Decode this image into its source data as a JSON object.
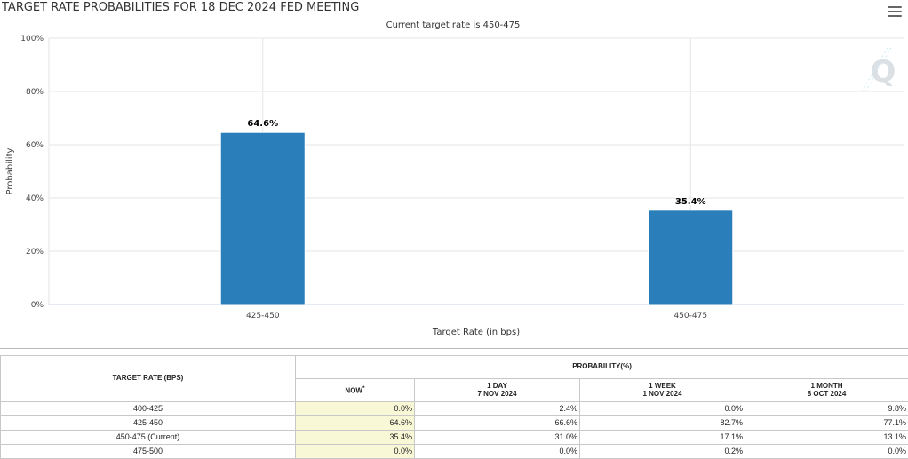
{
  "header": {
    "title": "TARGET RATE PROBABILITIES FOR 18 DEC 2024 FED MEETING",
    "menu_icon": "hamburger-menu-icon"
  },
  "chart_data": {
    "type": "bar",
    "title": "TARGET RATE PROBABILITIES FOR 18 DEC 2024 FED MEETING",
    "subtitle": "Current target rate is 450-475",
    "xlabel": "Target Rate (in bps)",
    "ylabel": "Probability",
    "categories": [
      "425-450",
      "450-475"
    ],
    "values": [
      64.6,
      35.4
    ],
    "data_labels": [
      "64.6%",
      "35.4%"
    ],
    "ylim": [
      0,
      100
    ],
    "yticks": [
      0,
      20,
      40,
      60,
      80,
      100
    ],
    "ytick_labels": [
      "0%",
      "20%",
      "40%",
      "60%",
      "80%",
      "100%"
    ],
    "grid": true,
    "bar_color": "#2a7fba"
  },
  "table": {
    "col_target_header": "TARGET RATE (BPS)",
    "prob_header": "PROBABILITY(%)",
    "columns": [
      {
        "line1": "NOW",
        "sup": "*",
        "line2": ""
      },
      {
        "line1": "1 DAY",
        "line2": "7 NOV 2024"
      },
      {
        "line1": "1 WEEK",
        "line2": "1 NOV 2024"
      },
      {
        "line1": "1 MONTH",
        "line2": "8 OCT 2024"
      }
    ],
    "rows": [
      {
        "rate": "400-425",
        "values": [
          "0.0%",
          "2.4%",
          "0.0%",
          "9.8%"
        ]
      },
      {
        "rate": "425-450",
        "values": [
          "64.6%",
          "66.6%",
          "82.7%",
          "77.1%"
        ]
      },
      {
        "rate": "450-475 (Current)",
        "values": [
          "35.4%",
          "31.0%",
          "17.1%",
          "13.1%"
        ]
      },
      {
        "rate": "475-500",
        "values": [
          "0.0%",
          "0.0%",
          "0.2%",
          "0.0%"
        ]
      }
    ]
  }
}
